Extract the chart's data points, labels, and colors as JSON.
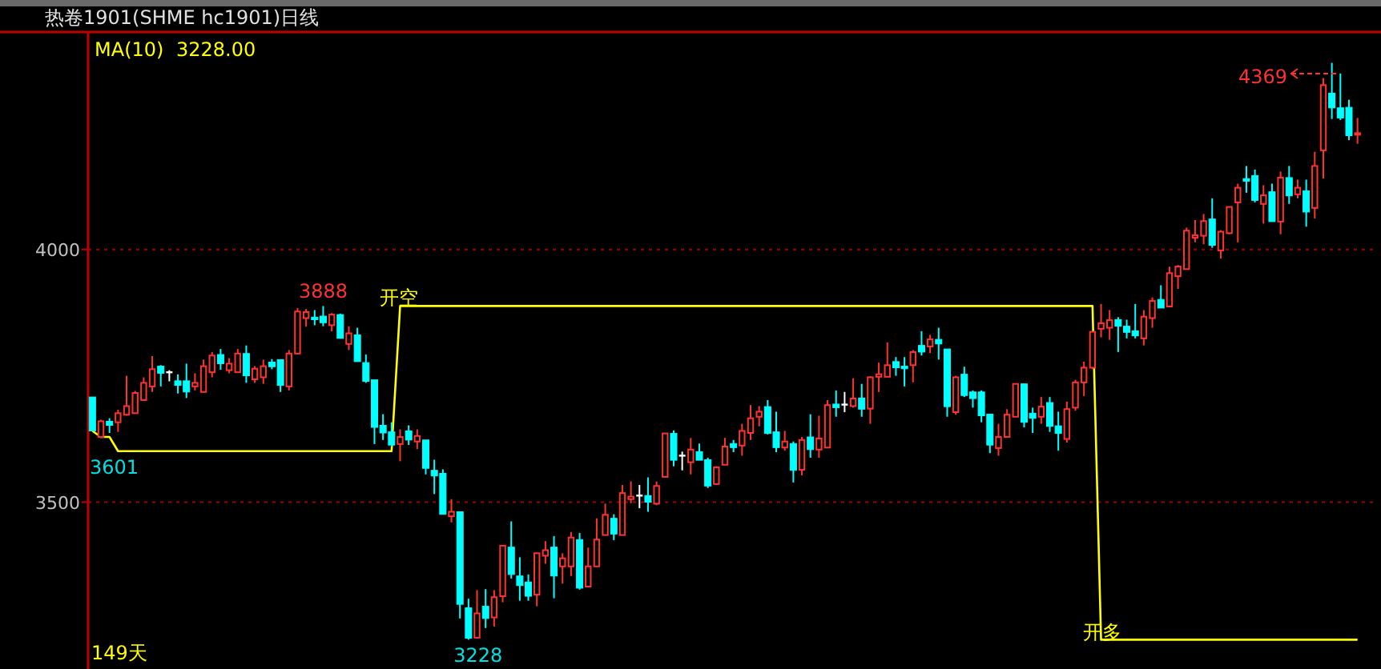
{
  "chart_data": {
    "type": "candlestick",
    "title": "热卷1901(SHME hc1901)日线",
    "categories": [
      null,
      null,
      null,
      null,
      null,
      null,
      null,
      null,
      null,
      null,
      null,
      null,
      null,
      null,
      null,
      null,
      null,
      null,
      null,
      null,
      null,
      null,
      null,
      null,
      null,
      null,
      null,
      null,
      null,
      null,
      null,
      null,
      null,
      null,
      null,
      null,
      null,
      null,
      null,
      null,
      null,
      null,
      null,
      null,
      null,
      null,
      null,
      null,
      null,
      null,
      null,
      null,
      null,
      null,
      null,
      null,
      null,
      null,
      null,
      null,
      null,
      null,
      null,
      null,
      null,
      null,
      null,
      null,
      null,
      null,
      null,
      null,
      null,
      null,
      null,
      null,
      null,
      null,
      null,
      null,
      null,
      null,
      null,
      null,
      null,
      null,
      null,
      null,
      null,
      null,
      null,
      null,
      null,
      null,
      null,
      null,
      null,
      null,
      null,
      null,
      null,
      null,
      null,
      null,
      null,
      null,
      null,
      null,
      null,
      null,
      null,
      null,
      null,
      null,
      null,
      null,
      null,
      null,
      null,
      null,
      null,
      null,
      null,
      null,
      null,
      null,
      null,
      null,
      null,
      null,
      null,
      null,
      null,
      null,
      null,
      null,
      null,
      null,
      null,
      null,
      null,
      null,
      null,
      null,
      null,
      null,
      null,
      null,
      null
    ],
    "ohlc": [
      [
        3708,
        3708,
        3641,
        3641
      ],
      [
        3629,
        3663,
        3627,
        3660
      ],
      [
        3660,
        3666,
        3637,
        3652
      ],
      [
        3658,
        3683,
        3639,
        3676
      ],
      [
        3673,
        3750,
        3671,
        3690
      ],
      [
        3676,
        3720,
        3676,
        3716
      ],
      [
        3702,
        3747,
        3702,
        3736
      ],
      [
        3729,
        3789,
        3718,
        3763
      ],
      [
        3769,
        3771,
        3729,
        3755
      ],
      [
        3757,
        3761,
        3739,
        3757
      ],
      [
        3740,
        3753,
        3715,
        3731
      ],
      [
        3740,
        3774,
        3706,
        3718
      ],
      [
        3729,
        3755,
        3721,
        3736
      ],
      [
        3718,
        3782,
        3718,
        3769
      ],
      [
        3757,
        3797,
        3747,
        3790
      ],
      [
        3792,
        3803,
        3762,
        3774
      ],
      [
        3761,
        3785,
        3755,
        3774
      ],
      [
        3757,
        3803,
        3757,
        3794
      ],
      [
        3794,
        3810,
        3736,
        3750
      ],
      [
        3743,
        3769,
        3736,
        3764
      ],
      [
        3747,
        3782,
        3734,
        3769
      ],
      [
        3777,
        3783,
        3763,
        3768
      ],
      [
        3782,
        3782,
        3718,
        3731
      ],
      [
        3729,
        3801,
        3721,
        3794
      ],
      [
        3794,
        3884,
        3792,
        3877
      ],
      [
        3864,
        3882,
        3847,
        3876
      ],
      [
        3866,
        3880,
        3850,
        3861
      ],
      [
        3868,
        3888,
        3848,
        3855
      ],
      [
        3850,
        3874,
        3838,
        3871
      ],
      [
        3871,
        3873,
        3824,
        3824
      ],
      [
        3813,
        3848,
        3801,
        3834
      ],
      [
        3831,
        3845,
        3778,
        3778
      ],
      [
        3776,
        3792,
        3736,
        3739
      ],
      [
        3742,
        3742,
        3615,
        3648
      ],
      [
        3652,
        3674,
        3623,
        3637
      ],
      [
        3639,
        3658,
        3610,
        3613
      ],
      [
        3615,
        3644,
        3581,
        3629
      ],
      [
        3641,
        3652,
        3613,
        3623
      ],
      [
        3620,
        3644,
        3605,
        3631
      ],
      [
        3623,
        3623,
        3555,
        3567
      ],
      [
        3563,
        3584,
        3516,
        3552
      ],
      [
        3557,
        3565,
        3476,
        3476
      ],
      [
        3472,
        3506,
        3460,
        3481
      ],
      [
        3481,
        3481,
        3270,
        3298
      ],
      [
        3291,
        3309,
        3228,
        3231
      ],
      [
        3232,
        3326,
        3231,
        3280
      ],
      [
        3294,
        3328,
        3251,
        3270
      ],
      [
        3272,
        3326,
        3254,
        3312
      ],
      [
        3314,
        3414,
        3302,
        3414
      ],
      [
        3411,
        3462,
        3349,
        3357
      ],
      [
        3354,
        3391,
        3305,
        3335
      ],
      [
        3342,
        3357,
        3305,
        3314
      ],
      [
        3317,
        3399,
        3294,
        3399
      ],
      [
        3394,
        3423,
        3378,
        3405
      ],
      [
        3411,
        3433,
        3310,
        3354
      ],
      [
        3373,
        3399,
        3339,
        3389
      ],
      [
        3373,
        3441,
        3354,
        3430
      ],
      [
        3426,
        3439,
        3327,
        3330
      ],
      [
        3333,
        3410,
        3333,
        3373
      ],
      [
        3373,
        3468,
        3373,
        3426
      ],
      [
        3435,
        3497,
        3435,
        3475
      ],
      [
        3468,
        3476,
        3425,
        3437
      ],
      [
        3435,
        3534,
        3435,
        3518
      ],
      [
        3506,
        3541,
        3498,
        3511
      ],
      [
        3513,
        3534,
        3488,
        3513
      ],
      [
        3513,
        3549,
        3481,
        3500
      ],
      [
        3497,
        3541,
        3494,
        3532
      ],
      [
        3550,
        3636,
        3550,
        3636
      ],
      [
        3636,
        3642,
        3571,
        3583
      ],
      [
        3592,
        3600,
        3563,
        3592
      ],
      [
        3579,
        3627,
        3555,
        3604
      ],
      [
        3600,
        3616,
        3583,
        3583
      ],
      [
        3584,
        3588,
        3528,
        3532
      ],
      [
        3536,
        3571,
        3534,
        3569
      ],
      [
        3574,
        3627,
        3574,
        3610
      ],
      [
        3616,
        3623,
        3599,
        3608
      ],
      [
        3612,
        3655,
        3592,
        3641
      ],
      [
        3637,
        3692,
        3623,
        3666
      ],
      [
        3669,
        3690,
        3650,
        3679
      ],
      [
        3689,
        3702,
        3634,
        3636
      ],
      [
        3639,
        3679,
        3599,
        3608
      ],
      [
        3608,
        3641,
        3602,
        3620
      ],
      [
        3616,
        3620,
        3539,
        3563
      ],
      [
        3564,
        3629,
        3553,
        3623
      ],
      [
        3629,
        3674,
        3588,
        3604
      ],
      [
        3604,
        3671,
        3588,
        3626
      ],
      [
        3608,
        3702,
        3608,
        3692
      ],
      [
        3694,
        3721,
        3669,
        3687
      ],
      [
        3693,
        3718,
        3678,
        3693
      ],
      [
        3690,
        3745,
        3687,
        3705
      ],
      [
        3706,
        3734,
        3669,
        3684
      ],
      [
        3685,
        3749,
        3655,
        3747
      ],
      [
        3748,
        3776,
        3718,
        3753
      ],
      [
        3748,
        3816,
        3748,
        3771
      ],
      [
        3778,
        3787,
        3750,
        3766
      ],
      [
        3769,
        3787,
        3729,
        3764
      ],
      [
        3771,
        3801,
        3737,
        3797
      ],
      [
        3810,
        3838,
        3790,
        3797
      ],
      [
        3808,
        3831,
        3795,
        3822
      ],
      [
        3822,
        3845,
        3782,
        3813
      ],
      [
        3803,
        3803,
        3669,
        3689
      ],
      [
        3678,
        3750,
        3673,
        3747
      ],
      [
        3753,
        3768,
        3708,
        3711
      ],
      [
        3718,
        3721,
        3687,
        3705
      ],
      [
        3718,
        3721,
        3658,
        3671
      ],
      [
        3674,
        3674,
        3597,
        3613
      ],
      [
        3607,
        3655,
        3592,
        3629
      ],
      [
        3629,
        3684,
        3629,
        3673
      ],
      [
        3669,
        3734,
        3669,
        3734
      ],
      [
        3734,
        3734,
        3648,
        3658
      ],
      [
        3676,
        3687,
        3637,
        3666
      ],
      [
        3669,
        3708,
        3655,
        3689
      ],
      [
        3697,
        3708,
        3639,
        3650
      ],
      [
        3651,
        3679,
        3602,
        3636
      ],
      [
        3625,
        3699,
        3618,
        3684
      ],
      [
        3687,
        3742,
        3681,
        3737
      ],
      [
        3737,
        3778,
        3710,
        3766
      ],
      [
        3766,
        3837,
        3763,
        3837
      ],
      [
        3843,
        3892,
        3826,
        3854
      ],
      [
        3845,
        3880,
        3821,
        3860
      ],
      [
        3861,
        3866,
        3797,
        3848
      ],
      [
        3848,
        3861,
        3824,
        3836
      ],
      [
        3839,
        3892,
        3824,
        3829
      ],
      [
        3824,
        3880,
        3810,
        3867
      ],
      [
        3864,
        3905,
        3845,
        3898
      ],
      [
        3901,
        3929,
        3884,
        3884
      ],
      [
        3887,
        3966,
        3887,
        3953
      ],
      [
        3947,
        3969,
        3922,
        3966
      ],
      [
        3961,
        4043,
        3961,
        4037
      ],
      [
        4023,
        4058,
        4014,
        4028
      ],
      [
        4027,
        4070,
        4010,
        4056
      ],
      [
        4060,
        4101,
        4003,
        4008
      ],
      [
        3998,
        4038,
        3982,
        4035
      ],
      [
        4032,
        4084,
        4030,
        4084
      ],
      [
        4093,
        4130,
        4014,
        4122
      ],
      [
        4140,
        4165,
        4112,
        4135
      ],
      [
        4146,
        4158,
        4093,
        4097
      ],
      [
        4090,
        4127,
        4051,
        4107
      ],
      [
        4114,
        4130,
        4055,
        4055
      ],
      [
        4055,
        4154,
        4030,
        4142
      ],
      [
        4142,
        4165,
        4090,
        4106
      ],
      [
        4109,
        4138,
        4101,
        4122
      ],
      [
        4116,
        4138,
        4045,
        4074
      ],
      [
        4082,
        4193,
        4061,
        4165
      ],
      [
        4196,
        4339,
        4140,
        4325
      ],
      [
        4309,
        4369,
        4258,
        4280
      ],
      [
        4280,
        4348,
        4256,
        4260
      ],
      [
        4281,
        4296,
        4216,
        4225
      ],
      [
        4227,
        4260,
        4209,
        4230
      ]
    ],
    "colors": [
      "#00ffff",
      "#ff3232",
      "#00ffff",
      "#ff3232",
      "#ff3232",
      "#ff3232",
      "#ff3232",
      "#ff3232",
      "#00ffff",
      "#ffffff",
      "#00ffff",
      "#00ffff",
      "#ff3232",
      "#ff3232",
      "#ff3232",
      "#00ffff",
      "#ff3232",
      "#ff3232",
      "#00ffff",
      "#ff3232",
      "#ff3232",
      "#00ffff",
      "#00ffff",
      "#ff3232",
      "#ff3232",
      "#ff3232",
      "#00ffff",
      "#00ffff",
      "#ff3232",
      "#00ffff",
      "#ff3232",
      "#00ffff",
      "#00ffff",
      "#00ffff",
      "#00ffff",
      "#00ffff",
      "#ff3232",
      "#00ffff",
      "#ff3232",
      "#00ffff",
      "#00ffff",
      "#00ffff",
      "#ff3232",
      "#00ffff",
      "#00ffff",
      "#ff3232",
      "#00ffff",
      "#ff3232",
      "#ff3232",
      "#00ffff",
      "#00ffff",
      "#00ffff",
      "#ff3232",
      "#ff3232",
      "#00ffff",
      "#ff3232",
      "#ff3232",
      "#00ffff",
      "#ff3232",
      "#ff3232",
      "#ff3232",
      "#00ffff",
      "#ff3232",
      "#ff3232",
      "#ffffff",
      "#00ffff",
      "#ff3232",
      "#ff3232",
      "#00ffff",
      "#ffffff",
      "#ff3232",
      "#00ffff",
      "#00ffff",
      "#ff3232",
      "#ff3232",
      "#00ffff",
      "#ff3232",
      "#ff3232",
      "#ff3232",
      "#00ffff",
      "#00ffff",
      "#ff3232",
      "#00ffff",
      "#ff3232",
      "#00ffff",
      "#ff3232",
      "#ff3232",
      "#00ffff",
      "#ffffff",
      "#ff3232",
      "#00ffff",
      "#ff3232",
      "#ff3232",
      "#ff3232",
      "#00ffff",
      "#00ffff",
      "#ff3232",
      "#00ffff",
      "#ff3232",
      "#00ffff",
      "#00ffff",
      "#ff3232",
      "#00ffff",
      "#00ffff",
      "#00ffff",
      "#00ffff",
      "#ff3232",
      "#ff3232",
      "#ff3232",
      "#00ffff",
      "#00ffff",
      "#ff3232",
      "#00ffff",
      "#00ffff",
      "#ff3232",
      "#ff3232",
      "#ff3232",
      "#ff3232",
      "#ff3232",
      "#ff3232",
      "#00ffff",
      "#00ffff",
      "#00ffff",
      "#ff3232",
      "#ff3232",
      "#00ffff",
      "#ff3232",
      "#ff3232",
      "#ff3232",
      "#ff3232",
      "#ff3232",
      "#00ffff",
      "#ff3232",
      "#ff3232",
      "#ff3232",
      "#00ffff",
      "#00ffff",
      "#ff3232",
      "#00ffff",
      "#ff3232",
      "#00ffff",
      "#ff3232",
      "#00ffff",
      "#ff3232",
      "#ff3232",
      "#00ffff",
      "#00ffff",
      "#00ffff",
      "#ff3232"
    ],
    "series": [
      {
        "type": "line",
        "color": "#ffff00",
        "values": [
          3641,
          3629,
          3629,
          3601,
          3601,
          3601,
          3601,
          3601,
          3601,
          3601,
          3601,
          3601,
          3601,
          3601,
          3601,
          3601,
          3601,
          3601,
          3601,
          3601,
          3601,
          3601,
          3601,
          3601,
          3601,
          3601,
          3601,
          3601,
          3601,
          3601,
          3601,
          3601,
          3601,
          3601,
          3601,
          3601,
          3888,
          3888,
          3888,
          3888,
          3888,
          3888,
          3888,
          3888,
          3888,
          3888,
          3888,
          3888,
          3888,
          3888,
          3888,
          3888,
          3888,
          3888,
          3888,
          3888,
          3888,
          3888,
          3888,
          3888,
          3888,
          3888,
          3888,
          3888,
          3888,
          3888,
          3888,
          3888,
          3888,
          3888,
          3888,
          3888,
          3888,
          3888,
          3888,
          3888,
          3888,
          3888,
          3888,
          3888,
          3888,
          3888,
          3888,
          3888,
          3888,
          3888,
          3888,
          3888,
          3888,
          3888,
          3888,
          3888,
          3888,
          3888,
          3888,
          3888,
          3888,
          3888,
          3888,
          3888,
          3888,
          3888,
          3888,
          3888,
          3888,
          3888,
          3888,
          3888,
          3888,
          3888,
          3888,
          3888,
          3888,
          3888,
          3888,
          3888,
          3888,
          3888,
          3228,
          3228,
          3228,
          3228,
          3228,
          3228,
          3228,
          3228,
          3228,
          3228,
          3228,
          3228,
          3228,
          3228,
          3228,
          3228,
          3228,
          3228,
          3228,
          3228,
          3228,
          3228,
          3228,
          3228,
          3228,
          3228,
          3228,
          3228,
          3228,
          3228,
          3228
        ]
      }
    ],
    "ylim": [
      3170,
      4430
    ],
    "yticks": [
      3500,
      4000
    ],
    "grid": "y",
    "tick_labels": "y",
    "annotations": [
      {
        "text": "3888",
        "y": 3888
      },
      {
        "text": "3601",
        "y": 3601
      },
      {
        "text": "3228",
        "y": 3228
      },
      "4369",
      "开空",
      "开多",
      "149天",
      "MA(10)",
      "3228.00"
    ]
  }
}
